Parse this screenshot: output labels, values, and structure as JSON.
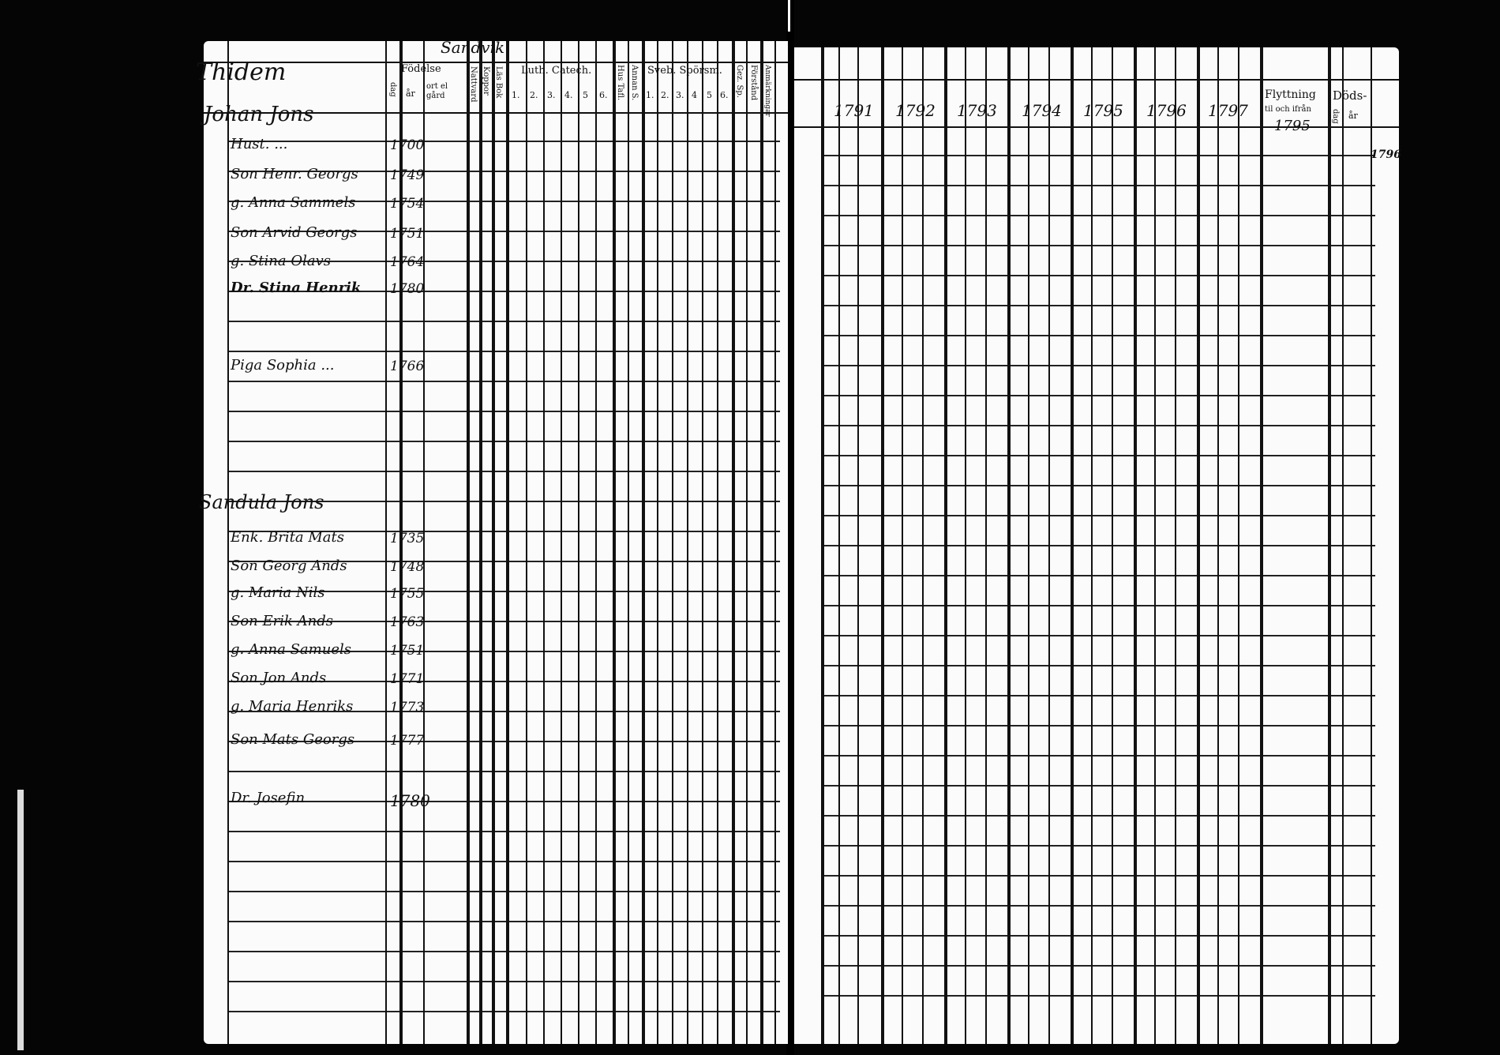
{
  "left_page": {
    "parish_heading": "Thidem",
    "top_annotation": "Sandvik",
    "headers": {
      "fodelse": "Födelse",
      "dag": "dag",
      "ar": "år",
      "ort": "ort el gård",
      "nattvard": "Nattvard",
      "kopparkopp": "Koppor",
      "las": "Läs Bok",
      "luth_catech": "Luth. Catech.",
      "luth_cols": [
        "1.",
        "2.",
        "3.",
        "4.",
        "5",
        "6."
      ],
      "hus_tafl": "Hus Tafl.",
      "annan": "Annan S.",
      "sveb": "Sveb. Spörsm.",
      "sveb_cols": [
        "1.",
        "2.",
        "3.",
        "4",
        "5",
        "6."
      ],
      "gez": "Gez. Sp.",
      "forstand": "Förstånd",
      "anmarkning": "Anmärkningar"
    },
    "households": [
      {
        "title": "Johan Jons",
        "members": [
          {
            "name": "Hust. ...",
            "year": "1700"
          },
          {
            "name": "Son Henr. Georgs",
            "year": "1749"
          },
          {
            "name": "g. Anna Sammels",
            "year": "1754"
          },
          {
            "name": "Son Arvid Georgs",
            "year": "1751"
          },
          {
            "name": "g. Stina Olavs",
            "year": "1764"
          },
          {
            "name": "Dr. Stina Henrik",
            "year": "1780"
          },
          {
            "name": "Piga Sophia ...",
            "year": "1766"
          }
        ]
      },
      {
        "title": "Sandula Jons",
        "members": [
          {
            "name": "Enk. Brita Mats",
            "year": "1735"
          },
          {
            "name": "Son Georg Ands",
            "year": "1748"
          },
          {
            "name": "g. Maria Nils",
            "year": "1755"
          },
          {
            "name": "Son Erik Ands",
            "year": "1763"
          },
          {
            "name": "g. Anna Samuels",
            "year": "1751"
          },
          {
            "name": "Son Jon Ands",
            "year": "1771"
          },
          {
            "name": "g. Maria Henriks",
            "year": "1773"
          },
          {
            "name": "Son Mats Georgs",
            "year": "1777"
          },
          {
            "name": "Dr. Josefin",
            "year": "1780"
          }
        ]
      }
    ]
  },
  "right_page": {
    "years": [
      "1791",
      "1792",
      "1793",
      "1794",
      "1795",
      "1796",
      "1797"
    ],
    "flyttning": "Flyttning",
    "flyttning_sub": "til och ifrån",
    "flyttning_year": "1795",
    "dods": "Döds-",
    "dods_dag": "dag",
    "dods_ar": "år",
    "death_entry": "1796"
  }
}
